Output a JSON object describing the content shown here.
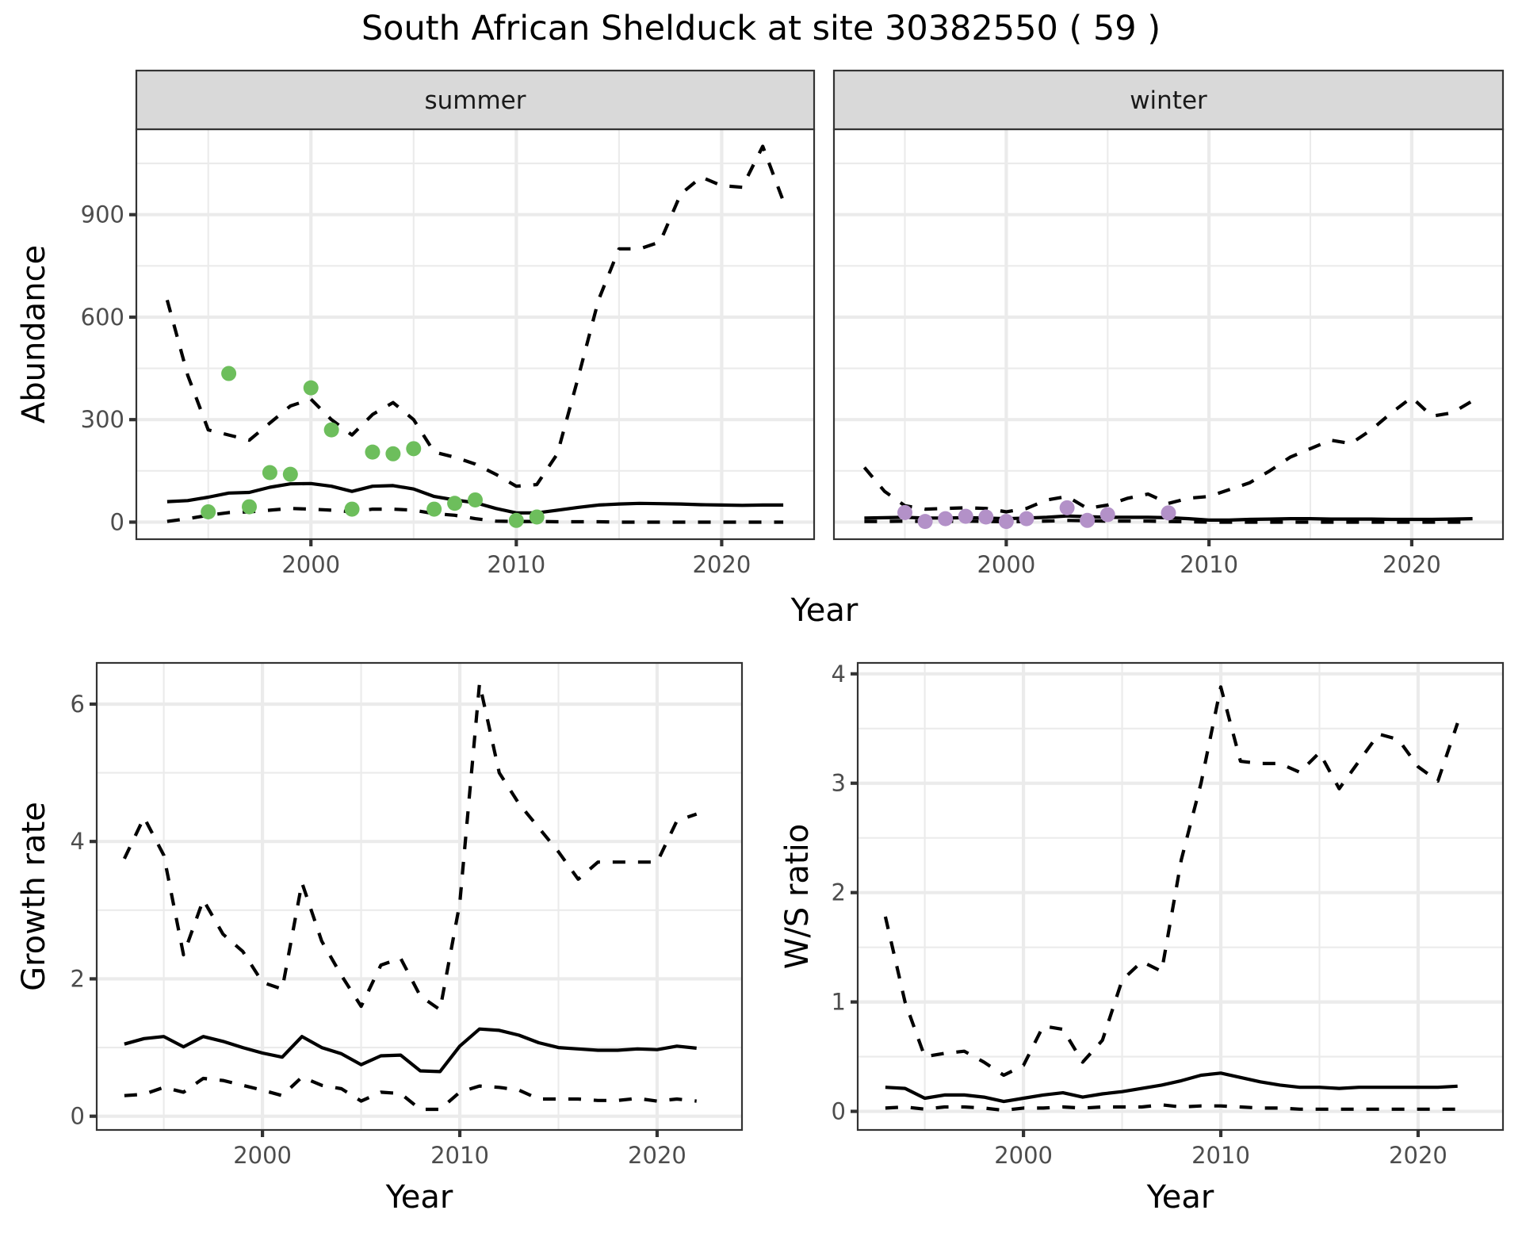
{
  "title": "South African Shelduck at site 30382550 ( 59 )",
  "colors": {
    "summer_points": "#6dbe5c",
    "winter_points": "#b391c8",
    "lines": "#000000"
  },
  "chart_data": [
    {
      "id": "abundance-summer",
      "type": "line",
      "facet_label": "summer",
      "xlabel": "Year",
      "ylabel": "Abundance",
      "xlim": [
        1991.5,
        2024.5
      ],
      "ylim": [
        -50,
        1150
      ],
      "x_ticks": [
        2000,
        2010,
        2020
      ],
      "y_ticks": [
        0,
        300,
        600,
        900
      ],
      "grid": true,
      "x": [
        1993,
        1994,
        1995,
        1996,
        1997,
        1998,
        1999,
        2000,
        2001,
        2002,
        2003,
        2004,
        2005,
        2006,
        2007,
        2008,
        2009,
        2010,
        2011,
        2012,
        2013,
        2014,
        2015,
        2016,
        2017,
        2018,
        2019,
        2020,
        2021,
        2022,
        2023
      ],
      "series": [
        {
          "name": "upper",
          "style": "dashed",
          "values": [
            650,
            430,
            270,
            255,
            240,
            290,
            340,
            360,
            300,
            255,
            315,
            350,
            300,
            205,
            190,
            170,
            140,
            105,
            110,
            200,
            420,
            650,
            800,
            800,
            820,
            960,
            1010,
            985,
            980,
            1100,
            940
          ]
        },
        {
          "name": "mean",
          "style": "solid",
          "values": [
            60,
            63,
            73,
            85,
            87,
            102,
            112,
            113,
            105,
            90,
            105,
            107,
            97,
            75,
            65,
            57,
            40,
            27,
            27,
            35,
            43,
            50,
            53,
            55,
            54,
            53,
            51,
            50,
            49,
            50,
            50
          ]
        },
        {
          "name": "lower",
          "style": "dashed",
          "values": [
            2,
            10,
            20,
            28,
            30,
            35,
            40,
            38,
            35,
            30,
            38,
            38,
            35,
            25,
            20,
            10,
            3,
            2,
            2,
            1,
            1,
            1,
            0,
            0,
            0,
            0,
            0,
            0,
            0,
            0,
            0
          ]
        }
      ],
      "points": {
        "x": [
          1995,
          1996,
          1997,
          1998,
          1999,
          2000,
          2001,
          2002,
          2003,
          2004,
          2005,
          2006,
          2007,
          2008,
          2010,
          2011
        ],
        "y": [
          30,
          435,
          45,
          145,
          140,
          393,
          270,
          38,
          205,
          200,
          215,
          38,
          55,
          65,
          5,
          15
        ]
      }
    },
    {
      "id": "abundance-winter",
      "type": "line",
      "facet_label": "winter",
      "xlabel": "Year",
      "ylabel": "Abundance",
      "xlim": [
        1991.5,
        2024.5
      ],
      "ylim": [
        -50,
        1150
      ],
      "x_ticks": [
        2000,
        2010,
        2020
      ],
      "y_ticks": [
        0,
        300,
        600,
        900
      ],
      "grid": true,
      "x": [
        1993,
        1994,
        1995,
        1996,
        1997,
        1998,
        1999,
        2000,
        2001,
        2002,
        2003,
        2004,
        2005,
        2006,
        2007,
        2008,
        2009,
        2010,
        2011,
        2012,
        2013,
        2014,
        2015,
        2016,
        2017,
        2018,
        2019,
        2020,
        2021,
        2022,
        2023
      ],
      "series": [
        {
          "name": "upper",
          "style": "dashed",
          "values": [
            160,
            90,
            48,
            38,
            40,
            42,
            40,
            30,
            40,
            65,
            75,
            40,
            50,
            70,
            82,
            55,
            70,
            75,
            95,
            115,
            150,
            190,
            215,
            240,
            230,
            270,
            320,
            365,
            310,
            320,
            355
          ]
        },
        {
          "name": "mean",
          "style": "solid",
          "values": [
            12,
            13,
            14,
            12,
            12,
            13,
            12,
            10,
            12,
            14,
            18,
            16,
            14,
            14,
            14,
            13,
            10,
            6,
            6,
            8,
            9,
            10,
            10,
            9,
            9,
            9,
            8,
            8,
            8,
            9,
            10
          ]
        },
        {
          "name": "lower",
          "style": "dashed",
          "values": [
            2,
            2,
            3,
            2,
            2,
            3,
            2,
            1,
            2,
            3,
            5,
            4,
            3,
            3,
            3,
            2,
            1,
            0,
            0,
            0,
            0,
            0,
            0,
            0,
            0,
            0,
            0,
            0,
            0,
            0,
            0
          ]
        }
      ],
      "points": {
        "x": [
          1995,
          1996,
          1997,
          1998,
          1999,
          2000,
          2001,
          2003,
          2004,
          2005,
          2008
        ],
        "y": [
          28,
          2,
          10,
          17,
          15,
          2,
          10,
          42,
          5,
          22,
          27
        ]
      }
    },
    {
      "id": "growth-rate",
      "type": "line",
      "xlabel": "Year",
      "ylabel": "Growth rate",
      "xlim": [
        1991.6,
        2024.3
      ],
      "ylim": [
        -0.2,
        6.6
      ],
      "x_ticks": [
        2000,
        2010,
        2020
      ],
      "y_ticks": [
        0,
        2,
        4,
        6
      ],
      "grid": true,
      "x": [
        1993,
        1994,
        1995,
        1996,
        1997,
        1998,
        1999,
        2000,
        2001,
        2002,
        2003,
        2004,
        2005,
        2006,
        2007,
        2008,
        2009,
        2010,
        2011,
        2012,
        2013,
        2014,
        2015,
        2016,
        2017,
        2018,
        2019,
        2020,
        2021,
        2022
      ],
      "series": [
        {
          "name": "upper",
          "style": "dashed",
          "values": [
            3.75,
            4.35,
            3.8,
            2.35,
            3.15,
            2.65,
            2.4,
            1.95,
            1.85,
            3.4,
            2.55,
            2.05,
            1.6,
            2.2,
            2.3,
            1.75,
            1.55,
            3.1,
            6.3,
            5.0,
            4.55,
            4.2,
            3.85,
            3.45,
            3.7,
            3.7,
            3.7,
            3.7,
            4.3,
            4.4
          ]
        },
        {
          "name": "mean",
          "style": "solid",
          "values": [
            1.05,
            1.13,
            1.16,
            1.01,
            1.16,
            1.09,
            1.0,
            0.92,
            0.86,
            1.16,
            1.0,
            0.91,
            0.75,
            0.88,
            0.89,
            0.66,
            0.65,
            1.02,
            1.27,
            1.25,
            1.18,
            1.07,
            1.0,
            0.98,
            0.96,
            0.96,
            0.98,
            0.97,
            1.02,
            0.99
          ]
        },
        {
          "name": "lower",
          "style": "dashed",
          "values": [
            0.3,
            0.32,
            0.42,
            0.35,
            0.55,
            0.52,
            0.45,
            0.38,
            0.3,
            0.57,
            0.45,
            0.4,
            0.22,
            0.35,
            0.33,
            0.1,
            0.1,
            0.35,
            0.44,
            0.42,
            0.38,
            0.25,
            0.25,
            0.25,
            0.23,
            0.23,
            0.26,
            0.22,
            0.25,
            0.22
          ]
        }
      ]
    },
    {
      "id": "ws-ratio",
      "type": "line",
      "xlabel": "Year",
      "ylabel": "W/S ratio",
      "xlim": [
        1991.6,
        2024.3
      ],
      "ylim": [
        -0.17,
        4.1
      ],
      "x_ticks": [
        2000,
        2010,
        2020
      ],
      "y_ticks": [
        0,
        1,
        2,
        3,
        4
      ],
      "grid": true,
      "x": [
        1993,
        1994,
        1995,
        1996,
        1997,
        1998,
        1999,
        2000,
        2001,
        2002,
        2003,
        2004,
        2005,
        2006,
        2007,
        2008,
        2009,
        2010,
        2011,
        2012,
        2013,
        2014,
        2015,
        2016,
        2017,
        2018,
        2019,
        2020,
        2021,
        2022
      ],
      "series": [
        {
          "name": "upper",
          "style": "dashed",
          "values": [
            1.78,
            1.0,
            0.5,
            0.53,
            0.55,
            0.45,
            0.33,
            0.42,
            0.78,
            0.75,
            0.45,
            0.65,
            1.2,
            1.37,
            1.28,
            2.3,
            3.0,
            3.88,
            3.2,
            3.18,
            3.18,
            3.1,
            3.28,
            2.95,
            3.2,
            3.45,
            3.4,
            3.15,
            3.02,
            3.55
          ]
        },
        {
          "name": "mean",
          "style": "solid",
          "values": [
            0.22,
            0.21,
            0.12,
            0.15,
            0.15,
            0.13,
            0.09,
            0.12,
            0.15,
            0.17,
            0.13,
            0.16,
            0.18,
            0.21,
            0.24,
            0.28,
            0.33,
            0.35,
            0.31,
            0.27,
            0.24,
            0.22,
            0.22,
            0.21,
            0.22,
            0.22,
            0.22,
            0.22,
            0.22,
            0.23
          ]
        },
        {
          "name": "lower",
          "style": "dashed",
          "values": [
            0.03,
            0.04,
            0.02,
            0.04,
            0.04,
            0.03,
            0.01,
            0.03,
            0.03,
            0.04,
            0.03,
            0.04,
            0.04,
            0.04,
            0.06,
            0.04,
            0.05,
            0.05,
            0.04,
            0.03,
            0.03,
            0.02,
            0.02,
            0.02,
            0.02,
            0.02,
            0.02,
            0.02,
            0.02,
            0.02
          ]
        }
      ]
    }
  ],
  "shared_labels": {
    "top_xlabel": "Year"
  }
}
